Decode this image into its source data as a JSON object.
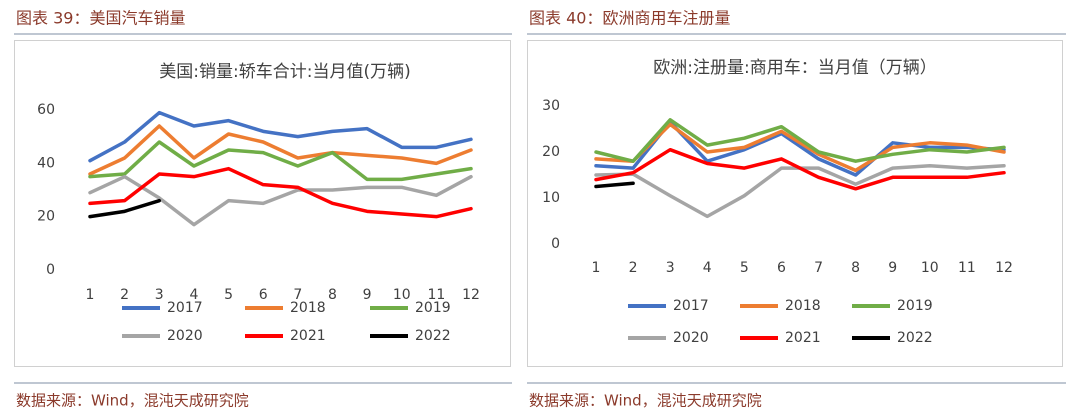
{
  "chart_data": [
    {
      "type": "line",
      "caption": "图表 39：美国汽车销量",
      "title": "美国:销量:轿车合计:当月值(万辆)",
      "source": "数据来源：Wind，混沌天成研究院",
      "categories": [
        "1",
        "2",
        "3",
        "4",
        "5",
        "6",
        "7",
        "8",
        "9",
        "10",
        "11",
        "12"
      ],
      "ylim": [
        0,
        60
      ],
      "yticks": [
        0,
        20,
        40,
        60
      ],
      "series": [
        {
          "name": "2017",
          "color": "#4472c4",
          "values": [
            41,
            48,
            59,
            54,
            56,
            52,
            50,
            52,
            53,
            46,
            46,
            49
          ]
        },
        {
          "name": "2018",
          "color": "#ed7d31",
          "values": [
            36,
            42,
            54,
            42,
            51,
            48,
            42,
            44,
            43,
            42,
            40,
            45
          ]
        },
        {
          "name": "2019",
          "color": "#70ad47",
          "values": [
            35,
            36,
            48,
            39,
            45,
            44,
            39,
            44,
            34,
            34,
            36,
            38
          ]
        },
        {
          "name": "2020",
          "color": "#a5a5a5",
          "values": [
            29,
            35,
            27,
            17,
            26,
            25,
            30,
            30,
            31,
            31,
            28,
            35
          ]
        },
        {
          "name": "2021",
          "color": "#ff0000",
          "values": [
            25,
            26,
            36,
            35,
            38,
            32,
            31,
            25,
            22,
            21,
            20,
            23
          ]
        },
        {
          "name": "2022",
          "color": "#000000",
          "values": [
            20,
            22,
            26,
            null,
            null,
            null,
            null,
            null,
            null,
            null,
            null,
            null
          ]
        }
      ]
    },
    {
      "type": "line",
      "caption": "图表 40：欧洲商用车注册量",
      "title": "欧洲:注册量:商用车：当月值（万辆）",
      "source": "数据来源：Wind，混沌天成研究院",
      "categories": [
        "1",
        "2",
        "3",
        "4",
        "5",
        "6",
        "7",
        "8",
        "9",
        "10",
        "11",
        "12"
      ],
      "ylim": [
        0,
        30
      ],
      "yticks": [
        0,
        10,
        20,
        30
      ],
      "series": [
        {
          "name": "2017",
          "color": "#4472c4",
          "values": [
            17,
            16.5,
            26.5,
            18,
            20.5,
            24,
            18.5,
            15,
            22,
            21,
            21,
            20.5
          ]
        },
        {
          "name": "2018",
          "color": "#ed7d31",
          "values": [
            18.5,
            18,
            26,
            20,
            21,
            24.5,
            19.5,
            16,
            21,
            22,
            21.5,
            20
          ]
        },
        {
          "name": "2019",
          "color": "#70ad47",
          "values": [
            20,
            18,
            27,
            21.5,
            23,
            25.5,
            20,
            18,
            19.5,
            20.5,
            20,
            21
          ]
        },
        {
          "name": "2020",
          "color": "#a5a5a5",
          "values": [
            15,
            15.2,
            10.5,
            6,
            10.5,
            16.5,
            16.5,
            13,
            16.5,
            17,
            16.5,
            17
          ]
        },
        {
          "name": "2021",
          "color": "#ff0000",
          "values": [
            14,
            15.5,
            20.5,
            17.5,
            16.5,
            18.5,
            14.5,
            12,
            14.5,
            14.5,
            14.5,
            15.5
          ]
        },
        {
          "name": "2022",
          "color": "#000000",
          "values": [
            12.5,
            13.2,
            null,
            null,
            null,
            null,
            null,
            null,
            null,
            null,
            null,
            null
          ]
        }
      ]
    }
  ]
}
